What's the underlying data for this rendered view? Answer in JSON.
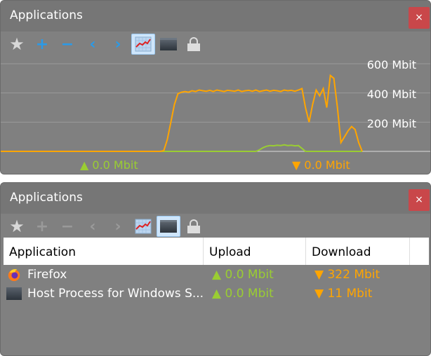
{
  "top_panel": {
    "title": "Applications",
    "close_label": "×",
    "toolbar": [
      "star-icon",
      "plus-icon",
      "minus-icon",
      "chevron-left-icon",
      "chevron-right-icon",
      "graph-icon",
      "window-icon",
      "lock-icon"
    ],
    "active_tool": "graph-icon",
    "axis_labels": [
      "600 Mbit",
      "400 Mbit",
      "200 Mbit"
    ],
    "upload_status": "▲ 0.0 Mbit",
    "download_status": "▼ 0.0 Mbit",
    "colors": {
      "download": "#ffa500",
      "upload": "#9acd32"
    },
    "graph": {
      "unit": "Mbit",
      "ylim": [
        0,
        600
      ],
      "download": [
        0,
        0,
        0,
        0,
        0,
        0,
        0,
        0,
        0,
        0,
        0,
        0,
        0,
        0,
        0,
        0,
        0,
        0,
        0,
        0,
        0,
        0,
        0,
        0,
        0,
        0,
        0,
        0,
        0,
        0,
        0,
        0,
        0,
        0,
        0,
        0,
        0,
        0,
        0,
        0,
        0,
        0,
        0,
        0,
        0,
        0,
        5,
        80,
        200,
        320,
        395,
        405,
        410,
        405,
        415,
        410,
        420,
        415,
        412,
        418,
        410,
        420,
        415,
        410,
        418,
        415,
        412,
        420,
        410,
        415,
        418,
        412,
        420,
        410,
        415,
        420,
        412,
        418,
        415,
        410,
        420,
        415,
        418,
        412,
        420,
        430,
        300,
        200,
        320,
        420,
        380,
        430,
        300,
        520,
        500,
        300,
        60,
        100,
        140,
        170,
        150,
        60,
        0
      ],
      "upload": [
        0,
        0,
        0,
        0,
        0,
        0,
        0,
        0,
        0,
        0,
        0,
        0,
        0,
        0,
        0,
        0,
        0,
        0,
        0,
        0,
        0,
        0,
        0,
        0,
        0,
        0,
        0,
        0,
        0,
        0,
        0,
        0,
        0,
        0,
        0,
        0,
        0,
        0,
        0,
        0,
        0,
        0,
        0,
        0,
        0,
        0,
        0,
        0,
        0,
        0,
        0,
        0,
        0,
        0,
        0,
        0,
        0,
        0,
        0,
        0,
        0,
        0,
        0,
        0,
        0,
        0,
        0,
        0,
        0,
        0,
        0,
        0,
        0,
        10,
        25,
        35,
        40,
        38,
        42,
        40,
        45,
        40,
        42,
        38,
        40,
        20,
        0,
        0,
        0,
        0,
        0,
        0,
        0,
        0,
        0,
        0,
        0,
        0,
        0,
        0,
        0,
        0,
        0
      ]
    }
  },
  "bottom_panel": {
    "title": "Applications",
    "close_label": "×",
    "toolbar": [
      "star-icon",
      "plus-icon",
      "minus-icon",
      "chevron-left-icon",
      "chevron-right-icon",
      "graph-icon",
      "window-icon",
      "lock-icon"
    ],
    "active_tool": "window-icon",
    "columns": [
      "Application",
      "Upload",
      "Download"
    ],
    "rows": [
      {
        "name": "Firefox",
        "icon": "firefox-icon",
        "upload": "▲ 0.0 Mbit",
        "download": "▼ 322 Mbit"
      },
      {
        "name": "Host Process for Windows S...",
        "icon": "window-icon",
        "upload": "▲ 0.0 Mbit",
        "download": "▼ 11 Mbit"
      }
    ]
  }
}
